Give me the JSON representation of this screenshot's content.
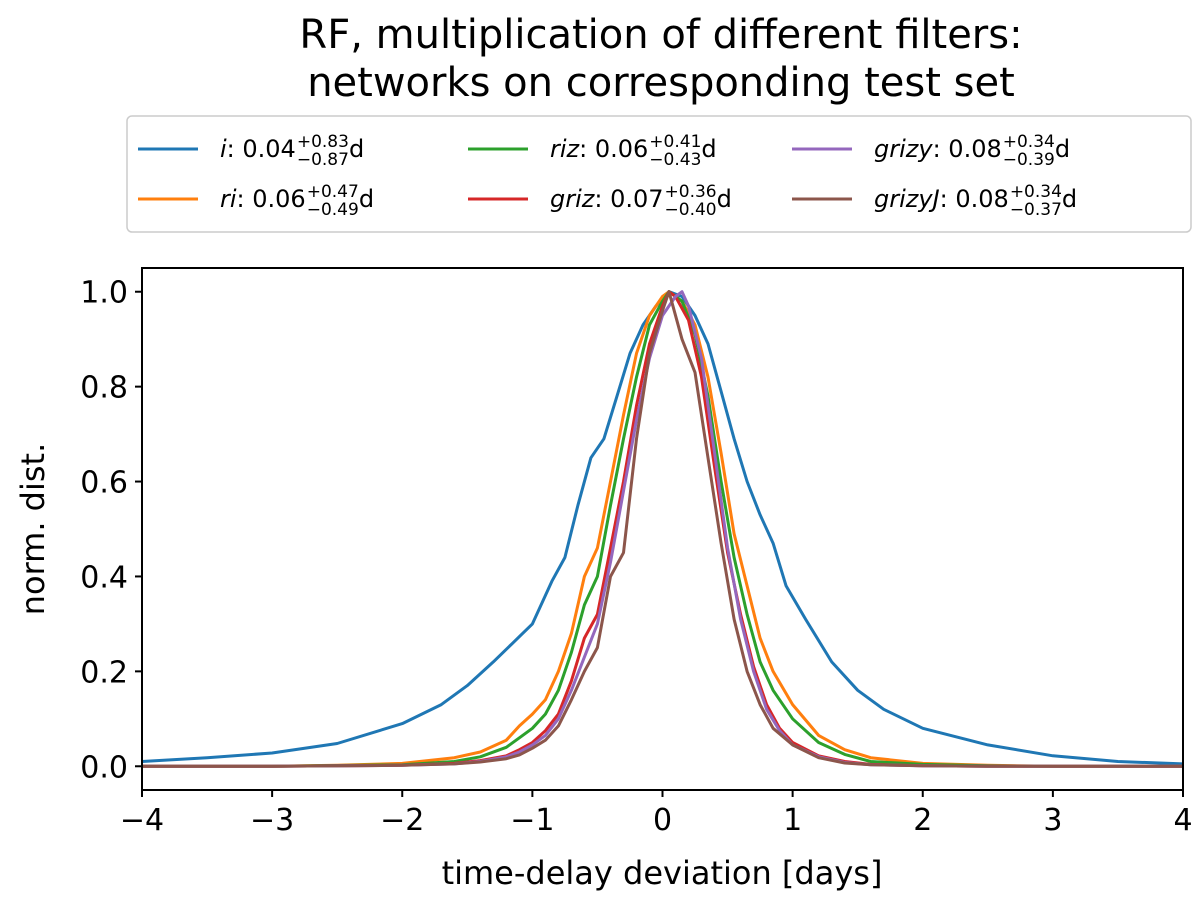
{
  "chart_data": {
    "type": "line",
    "title_lines": [
      "RF, multiplication of different filters:",
      "networks on corresponding test set"
    ],
    "xlabel": "time-delay deviation [days]",
    "ylabel": "norm. dist.",
    "xlim": [
      -4,
      4
    ],
    "ylim": [
      -0.05,
      1.05
    ],
    "xticks": [
      -4,
      -3,
      -2,
      -1,
      0,
      1,
      2,
      3,
      4
    ],
    "xtick_labels": [
      "−4",
      "−3",
      "−2",
      "−1",
      "0",
      "1",
      "2",
      "3",
      "4"
    ],
    "yticks": [
      0.0,
      0.2,
      0.4,
      0.6,
      0.8,
      1.0
    ],
    "ytick_labels": [
      "0.0",
      "0.2",
      "0.4",
      "0.6",
      "0.8",
      "1.0"
    ],
    "legend_position": "top",
    "series": [
      {
        "name": "i",
        "color": "#1f77b4",
        "legend": {
          "band": "i",
          "median": ": 0.04",
          "plus": "+0.83",
          "minus": "−0.87",
          "unit": " d"
        },
        "x": [
          -4,
          -3.5,
          -3,
          -2.5,
          -2,
          -1.7,
          -1.5,
          -1.3,
          -1.15,
          -1,
          -0.85,
          -0.75,
          -0.65,
          -0.55,
          -0.45,
          -0.35,
          -0.25,
          -0.15,
          -0.05,
          0.05,
          0.15,
          0.25,
          0.35,
          0.45,
          0.55,
          0.65,
          0.75,
          0.85,
          0.95,
          1.1,
          1.3,
          1.5,
          1.7,
          2,
          2.5,
          3,
          3.5,
          4
        ],
        "values": [
          0.01,
          0.018,
          0.028,
          0.048,
          0.09,
          0.13,
          0.17,
          0.22,
          0.26,
          0.3,
          0.39,
          0.44,
          0.55,
          0.65,
          0.69,
          0.78,
          0.87,
          0.93,
          0.97,
          1.0,
          0.99,
          0.95,
          0.89,
          0.79,
          0.69,
          0.6,
          0.53,
          0.47,
          0.38,
          0.31,
          0.22,
          0.16,
          0.12,
          0.08,
          0.045,
          0.022,
          0.01,
          0.005
        ]
      },
      {
        "name": "ri",
        "color": "#ff7f0e",
        "legend": {
          "band": "ri",
          "median": ": 0.06",
          "plus": "+0.47",
          "minus": "−0.49",
          "unit": " d"
        },
        "x": [
          -4,
          -3,
          -2.5,
          -2,
          -1.6,
          -1.4,
          -1.2,
          -1.1,
          -1,
          -0.9,
          -0.8,
          -0.7,
          -0.6,
          -0.5,
          -0.4,
          -0.3,
          -0.2,
          -0.1,
          0,
          0.05,
          0.15,
          0.25,
          0.35,
          0.45,
          0.55,
          0.65,
          0.75,
          0.85,
          1,
          1.2,
          1.4,
          1.6,
          2,
          2.5,
          3,
          4
        ],
        "values": [
          0,
          0,
          0.002,
          0.006,
          0.018,
          0.03,
          0.055,
          0.085,
          0.11,
          0.14,
          0.2,
          0.28,
          0.4,
          0.46,
          0.6,
          0.74,
          0.87,
          0.95,
          0.99,
          1.0,
          0.98,
          0.93,
          0.82,
          0.66,
          0.49,
          0.38,
          0.27,
          0.2,
          0.13,
          0.065,
          0.035,
          0.018,
          0.006,
          0.002,
          0,
          0
        ]
      },
      {
        "name": "riz",
        "color": "#2ca02c",
        "legend": {
          "band": "riz",
          "median": ": 0.06",
          "plus": "+0.41",
          "minus": "−0.43",
          "unit": " d"
        },
        "x": [
          -4,
          -3,
          -2,
          -1.6,
          -1.4,
          -1.2,
          -1.1,
          -1,
          -0.9,
          -0.8,
          -0.7,
          -0.6,
          -0.5,
          -0.4,
          -0.3,
          -0.2,
          -0.1,
          0,
          0.05,
          0.15,
          0.25,
          0.35,
          0.45,
          0.55,
          0.65,
          0.75,
          0.85,
          1,
          1.2,
          1.4,
          1.6,
          2,
          2.5,
          3,
          4
        ],
        "values": [
          0,
          0,
          0.003,
          0.01,
          0.02,
          0.04,
          0.06,
          0.08,
          0.11,
          0.16,
          0.24,
          0.34,
          0.4,
          0.55,
          0.69,
          0.82,
          0.93,
          0.98,
          1.0,
          0.98,
          0.91,
          0.78,
          0.6,
          0.44,
          0.32,
          0.22,
          0.16,
          0.1,
          0.05,
          0.025,
          0.01,
          0.004,
          0.001,
          0,
          0
        ]
      },
      {
        "name": "griz",
        "color": "#d62728",
        "legend": {
          "band": "griz",
          "median": ": 0.07",
          "plus": "+0.36",
          "minus": "−0.40",
          "unit": " d"
        },
        "x": [
          -4,
          -3,
          -2,
          -1.6,
          -1.4,
          -1.2,
          -1.1,
          -1,
          -0.9,
          -0.8,
          -0.7,
          -0.6,
          -0.5,
          -0.4,
          -0.3,
          -0.2,
          -0.1,
          0,
          0.05,
          0.1,
          0.2,
          0.3,
          0.4,
          0.5,
          0.6,
          0.7,
          0.8,
          0.9,
          1,
          1.2,
          1.4,
          1.6,
          2,
          2.5,
          3,
          4
        ],
        "values": [
          0,
          0,
          0.002,
          0.006,
          0.012,
          0.022,
          0.035,
          0.05,
          0.075,
          0.11,
          0.18,
          0.27,
          0.32,
          0.46,
          0.6,
          0.76,
          0.89,
          0.97,
          1.0,
          0.99,
          0.94,
          0.82,
          0.63,
          0.45,
          0.32,
          0.21,
          0.13,
          0.08,
          0.05,
          0.022,
          0.01,
          0.004,
          0.001,
          0,
          0,
          0
        ]
      },
      {
        "name": "grizy",
        "color": "#9467bd",
        "legend": {
          "band": "grizy",
          "median": ": 0.08",
          "plus": "+0.34",
          "minus": "−0.39",
          "unit": " d"
        },
        "x": [
          -4,
          -3,
          -2,
          -1.6,
          -1.4,
          -1.2,
          -1.1,
          -1,
          -0.9,
          -0.8,
          -0.7,
          -0.6,
          -0.5,
          -0.4,
          -0.3,
          -0.2,
          -0.1,
          0,
          0.1,
          0.15,
          0.2,
          0.3,
          0.4,
          0.5,
          0.6,
          0.7,
          0.8,
          0.9,
          1,
          1.2,
          1.4,
          1.6,
          2,
          2.5,
          3,
          4
        ],
        "values": [
          0,
          0,
          0.002,
          0.005,
          0.01,
          0.02,
          0.03,
          0.045,
          0.065,
          0.1,
          0.16,
          0.23,
          0.3,
          0.43,
          0.58,
          0.73,
          0.86,
          0.95,
          0.99,
          1.0,
          0.97,
          0.86,
          0.66,
          0.46,
          0.31,
          0.2,
          0.12,
          0.075,
          0.045,
          0.02,
          0.008,
          0.003,
          0.001,
          0,
          0,
          0
        ]
      },
      {
        "name": "grizyJ",
        "color": "#8c564b",
        "legend": {
          "band": "grizyJ",
          "median": ": 0.08",
          "plus": "+0.34",
          "minus": "−0.37",
          "unit": " d"
        },
        "x": [
          -4,
          -3,
          -2,
          -1.6,
          -1.4,
          -1.2,
          -1.1,
          -1,
          -0.9,
          -0.8,
          -0.7,
          -0.6,
          -0.5,
          -0.4,
          -0.3,
          -0.2,
          -0.1,
          0,
          0.05,
          0.15,
          0.25,
          0.35,
          0.45,
          0.55,
          0.65,
          0.75,
          0.85,
          1,
          1.2,
          1.4,
          1.6,
          2,
          2.5,
          3,
          4
        ],
        "values": [
          0,
          0,
          0.002,
          0.005,
          0.009,
          0.016,
          0.024,
          0.038,
          0.055,
          0.085,
          0.14,
          0.2,
          0.25,
          0.4,
          0.45,
          0.69,
          0.87,
          0.96,
          1.0,
          0.9,
          0.83,
          0.65,
          0.47,
          0.31,
          0.2,
          0.13,
          0.08,
          0.045,
          0.018,
          0.007,
          0.003,
          0.001,
          0,
          0,
          0
        ]
      }
    ]
  }
}
